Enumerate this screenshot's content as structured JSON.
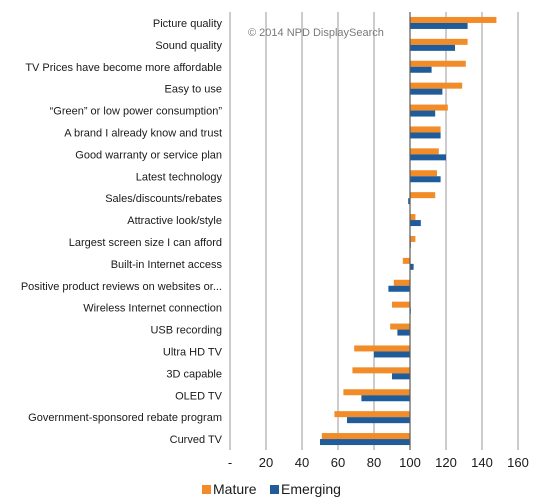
{
  "chart_data": {
    "type": "bar",
    "orientation": "horizontal",
    "categories": [
      "Picture quality",
      "Sound quality",
      "TV Prices have become more affordable",
      "Easy to use",
      "“Green” or low power consumption”",
      "A brand I already know and trust",
      "Good warranty or service plan",
      "Latest technology",
      "Sales/discounts/rebates",
      "Attractive look/style",
      "Largest screen size I can afford",
      "Built-in Internet access",
      "Positive product reviews on websites or...",
      "Wireless Internet connection",
      "USB recording",
      "Ultra HD TV",
      "3D capable",
      "OLED TV",
      "Government-sponsored rebate program",
      "Curved TV"
    ],
    "series": [
      {
        "name": "Mature",
        "color": "#F28C28",
        "values": [
          148,
          132,
          131,
          129,
          121,
          117,
          116,
          115,
          114,
          103,
          103,
          96,
          91,
          90,
          89,
          69,
          68,
          63,
          58,
          51
        ]
      },
      {
        "name": "Emerging",
        "color": "#1F5C99",
        "values": [
          132,
          125,
          112,
          118,
          114,
          117,
          120,
          117,
          99,
          106,
          100,
          102,
          88,
          100,
          93,
          80,
          90,
          73,
          65,
          50
        ]
      }
    ],
    "xlim": [
      0,
      160
    ],
    "xticks": [
      0,
      20,
      40,
      60,
      80,
      100,
      120,
      140,
      160
    ],
    "xtick_labels": [
      "-",
      "20",
      "40",
      "60",
      "80",
      "100",
      "120",
      "140",
      "160"
    ],
    "baseline": 100,
    "grid": true,
    "legend": "bottom",
    "annotation": "© 2014 NPD DisplaySearch"
  }
}
